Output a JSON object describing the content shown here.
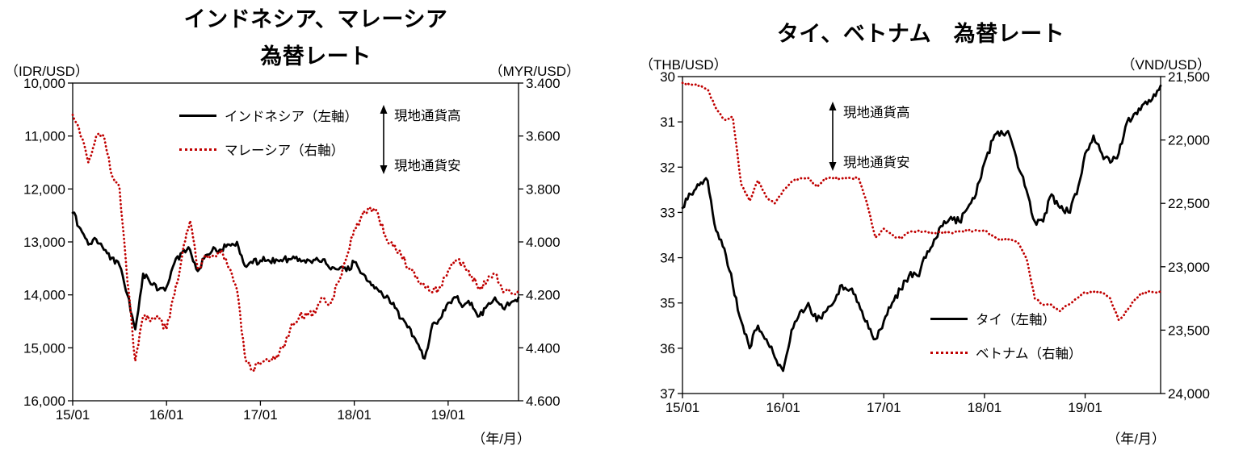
{
  "page": {
    "background": "#ffffff",
    "text_color": "#000000"
  },
  "chart_data": [
    {
      "type": "line",
      "title": "インドネシア、マレーシア\n為替レート",
      "x_unit_label": "（年/月）",
      "x_start": "15/01",
      "x_end": "19/10",
      "x_count": 58,
      "x_tick_labels": [
        "15/01",
        "16/01",
        "17/01",
        "18/01",
        "19/01"
      ],
      "x_tick_indices": [
        0,
        12,
        24,
        36,
        48
      ],
      "grid": "off",
      "legend_position": "top-inside",
      "left_axis": {
        "unit": "（IDR/USD）",
        "orientation": "min-at-top",
        "min": 10000,
        "max": 16000,
        "tick_values": [
          10000,
          11000,
          12000,
          13000,
          14000,
          15000,
          16000
        ],
        "tick_labels": [
          "10,000",
          "11,000",
          "12,000",
          "13,000",
          "14,000",
          "15,000",
          "16,000"
        ]
      },
      "right_axis": {
        "unit": "（MYR/USD）",
        "orientation": "min-at-top",
        "min": 3.4,
        "max": 4.6,
        "tick_values": [
          3.4,
          3.6,
          3.8,
          4.0,
          4.2,
          4.4,
          4.6
        ],
        "tick_labels": [
          "3.400",
          "3.600",
          "3.800",
          "4.000",
          "4.200",
          "4.400",
          "4.600"
        ]
      },
      "series": [
        {
          "name": "インドネシア（左軸）",
          "axis": "left",
          "style": "solid",
          "color": "#000000",
          "noise": 65,
          "seed": 7,
          "values": [
            12450,
            12750,
            13050,
            12950,
            13150,
            13300,
            13450,
            14000,
            14650,
            13600,
            13800,
            13900,
            13850,
            13400,
            13200,
            13150,
            13550,
            13250,
            13100,
            13150,
            13050,
            13000,
            13450,
            13400,
            13350,
            13340,
            13330,
            13320,
            13320,
            13320,
            13330,
            13340,
            13330,
            13520,
            13520,
            13550,
            13380,
            13600,
            13750,
            13900,
            14050,
            14150,
            14450,
            14600,
            14900,
            15200,
            14550,
            14450,
            14150,
            14050,
            14200,
            14150,
            14400,
            14200,
            14050,
            14250,
            14150,
            14050
          ]
        },
        {
          "name": "マレーシア（右軸）",
          "axis": "right",
          "style": "dotted",
          "color": "#c00000",
          "noise": 0.015,
          "seed": 13,
          "values": [
            3.52,
            3.6,
            3.7,
            3.6,
            3.6,
            3.75,
            3.8,
            4.15,
            4.45,
            4.28,
            4.3,
            4.29,
            4.33,
            4.2,
            4.05,
            3.92,
            4.1,
            4.05,
            4.05,
            4.03,
            4.1,
            4.18,
            4.43,
            4.48,
            4.46,
            4.45,
            4.43,
            4.4,
            4.31,
            4.28,
            4.28,
            4.27,
            4.21,
            4.23,
            4.15,
            4.06,
            3.95,
            3.9,
            3.87,
            3.89,
            3.98,
            4.02,
            4.05,
            4.1,
            4.13,
            4.17,
            4.19,
            4.17,
            4.11,
            4.07,
            4.08,
            4.13,
            4.18,
            4.15,
            4.12,
            4.19,
            4.19,
            4.18
          ]
        }
      ],
      "annotation": {
        "up_label": "現地通貨高",
        "down_label": "現地通貨安"
      }
    },
    {
      "type": "line",
      "title": "タイ、ベトナム　為替レート",
      "x_unit_label": "（年/月）",
      "x_start": "15/01",
      "x_end": "19/10",
      "x_count": 58,
      "x_tick_labels": [
        "15/01",
        "16/01",
        "17/01",
        "18/01",
        "19/01"
      ],
      "x_tick_indices": [
        0,
        12,
        24,
        36,
        48
      ],
      "grid": "off",
      "legend_position": "bottom-right-inside",
      "left_axis": {
        "unit": "（THB/USD）",
        "orientation": "min-at-top",
        "min": 30,
        "max": 37,
        "tick_values": [
          30,
          31,
          32,
          33,
          34,
          35,
          36,
          37
        ],
        "tick_labels": [
          "30",
          "31",
          "32",
          "33",
          "34",
          "35",
          "36",
          "37"
        ]
      },
      "right_axis": {
        "unit": "（VND/USD）",
        "orientation": "min-at-top",
        "min": 21500,
        "max": 24000,
        "tick_values": [
          21500,
          22000,
          22500,
          23000,
          23500,
          24000
        ],
        "tick_labels": [
          "21,500",
          "22,000",
          "22,500",
          "23,000",
          "23,500",
          "24,000"
        ]
      },
      "series": [
        {
          "name": "タイ（左軸）",
          "axis": "left",
          "style": "solid",
          "color": "#000000",
          "noise": 0.09,
          "seed": 3,
          "values": [
            32.9,
            32.6,
            32.4,
            32.3,
            33.4,
            33.8,
            34.6,
            35.4,
            36.0,
            35.5,
            35.8,
            36.2,
            36.5,
            35.6,
            35.2,
            35.0,
            35.4,
            35.2,
            35.0,
            34.6,
            34.7,
            35.0,
            35.4,
            35.8,
            35.4,
            35.0,
            34.7,
            34.4,
            34.4,
            34.0,
            33.6,
            33.3,
            33.1,
            33.2,
            32.9,
            32.6,
            31.9,
            31.4,
            31.2,
            31.3,
            32.0,
            32.5,
            33.2,
            33.2,
            32.6,
            32.9,
            33.0,
            32.6,
            31.7,
            31.3,
            31.7,
            31.9,
            31.7,
            31.0,
            30.8,
            30.6,
            30.5,
            30.2
          ]
        },
        {
          "name": "ベトナム（右軸）",
          "axis": "right",
          "style": "dotted",
          "color": "#c00000",
          "noise": 9,
          "seed": 9,
          "values": [
            21550,
            21560,
            21570,
            21600,
            21750,
            21840,
            21820,
            22350,
            22480,
            22320,
            22450,
            22500,
            22400,
            22330,
            22300,
            22300,
            22370,
            22300,
            22300,
            22300,
            22300,
            22300,
            22500,
            22770,
            22700,
            22750,
            22780,
            22730,
            22720,
            22720,
            22730,
            22730,
            22730,
            22720,
            22720,
            22710,
            22710,
            22760,
            22790,
            22780,
            22810,
            22930,
            23250,
            23300,
            23300,
            23350,
            23300,
            23250,
            23200,
            23200,
            23200,
            23250,
            23420,
            23350,
            23250,
            23200,
            23200,
            23200
          ]
        }
      ],
      "annotation": {
        "up_label": "現地通貨高",
        "down_label": "現地通貨安"
      }
    }
  ]
}
